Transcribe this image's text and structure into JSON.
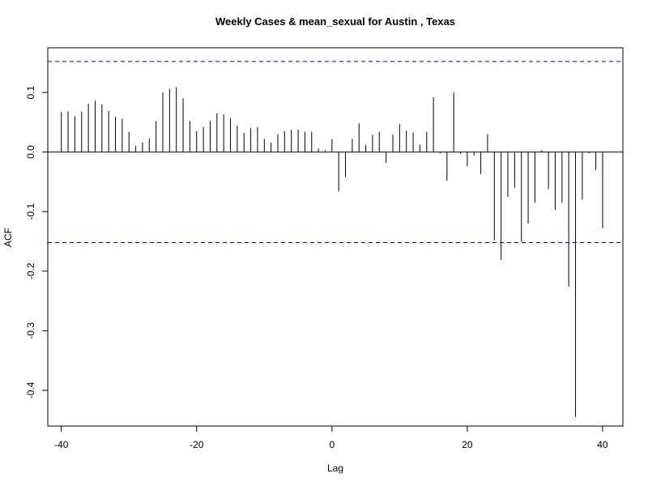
{
  "chart_data": {
    "type": "bar",
    "title": "Weekly Cases & mean_sexual for Austin , Texas",
    "xlabel": "Lag",
    "ylabel": "ACF",
    "xlim": [
      -42,
      43
    ],
    "ylim": [
      -0.46,
      0.175
    ],
    "x_ticks": [
      -40,
      -20,
      0,
      20,
      40
    ],
    "x_tick_labels": [
      "-40",
      "-20",
      "0",
      "20",
      "40"
    ],
    "y_ticks": [
      -0.4,
      -0.3,
      -0.2,
      -0.1,
      0.0,
      0.1
    ],
    "y_tick_labels": [
      "-0.4",
      "-0.3",
      "-0.2",
      "-0.1",
      "0.0",
      "0.1"
    ],
    "confidence_bound": 0.152,
    "zero_line": true,
    "grid": false,
    "colors": {
      "bars": "#000000",
      "bounds": "#0000cc",
      "frame": "#000000"
    },
    "lags": [
      -40,
      -39,
      -38,
      -37,
      -36,
      -35,
      -34,
      -33,
      -32,
      -31,
      -30,
      -29,
      -28,
      -27,
      -26,
      -25,
      -24,
      -23,
      -22,
      -21,
      -20,
      -19,
      -18,
      -17,
      -16,
      -15,
      -14,
      -13,
      -12,
      -11,
      -10,
      -9,
      -8,
      -7,
      -6,
      -5,
      -4,
      -3,
      -2,
      -1,
      0,
      1,
      2,
      3,
      4,
      5,
      6,
      7,
      8,
      9,
      10,
      11,
      12,
      13,
      14,
      15,
      16,
      17,
      18,
      19,
      20,
      21,
      22,
      23,
      24,
      25,
      26,
      27,
      28,
      29,
      30,
      31,
      32,
      33,
      34,
      35,
      36,
      37,
      38,
      39,
      40
    ],
    "acf": [
      0.067,
      0.068,
      0.06,
      0.068,
      0.081,
      0.086,
      0.08,
      0.069,
      0.059,
      0.056,
      0.034,
      0.01,
      0.016,
      0.023,
      0.052,
      0.1,
      0.106,
      0.109,
      0.09,
      0.052,
      0.035,
      0.042,
      0.052,
      0.065,
      0.063,
      0.057,
      0.044,
      0.032,
      0.04,
      0.042,
      0.022,
      0.016,
      0.03,
      0.035,
      0.037,
      0.038,
      0.034,
      0.034,
      0.006,
      0.003,
      0.022,
      -0.066,
      -0.042,
      0.022,
      0.048,
      0.012,
      0.029,
      0.034,
      -0.018,
      0.029,
      0.047,
      0.036,
      0.033,
      0.012,
      0.034,
      0.092,
      -0.002,
      -0.048,
      0.1,
      -0.003,
      -0.024,
      -0.006,
      -0.037,
      0.03,
      -0.148,
      -0.181,
      -0.075,
      -0.06,
      -0.15,
      -0.12,
      -0.085,
      0.003,
      -0.062,
      -0.097,
      -0.085,
      -0.226,
      -0.445,
      -0.08,
      -0.002,
      -0.03,
      -0.128
    ]
  }
}
